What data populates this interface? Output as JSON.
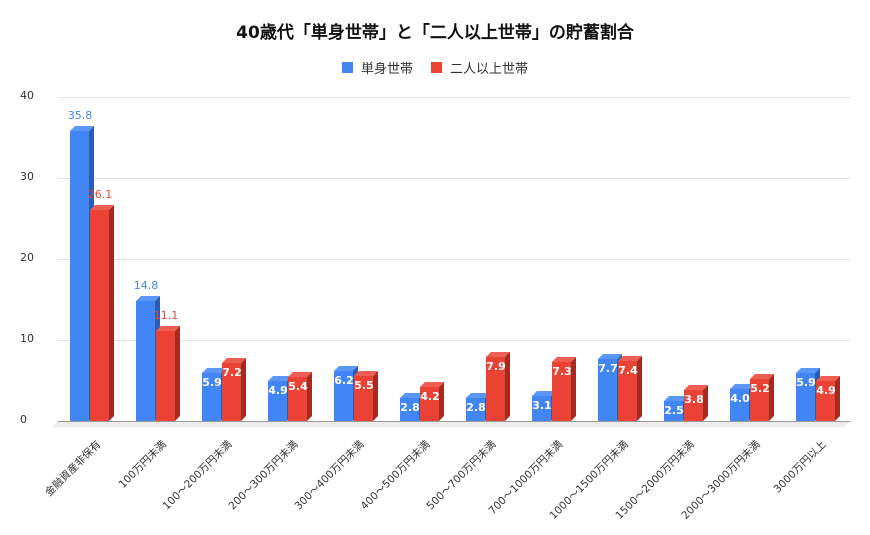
{
  "chart_data": {
    "type": "bar",
    "title": "40歳代「単身世帯」と「二人以上世帯」の貯蓄割合",
    "xlabel": "",
    "ylabel": "",
    "ylim": [
      0,
      40
    ],
    "yticks": [
      0,
      10,
      20,
      30,
      40
    ],
    "grid": true,
    "legend_position": "top",
    "style": "3d-column",
    "categories": [
      "金融資産非保有",
      "100万円未満",
      "100〜200万円未満",
      "200〜300万円未満",
      "300〜400万円未満",
      "400〜500万円未満",
      "500〜700万円未満",
      "700〜1000万円未満",
      "1000〜1500万円未満",
      "1500〜2000万円未満",
      "2000〜3000万円未満",
      "3000万円以上"
    ],
    "series": [
      {
        "name": "単身世帯",
        "color": "#4285f4",
        "values": [
          35.8,
          14.8,
          5.9,
          4.9,
          6.2,
          2.8,
          2.8,
          3.1,
          7.7,
          2.5,
          4.0,
          5.9
        ]
      },
      {
        "name": "二人以上世帯",
        "color": "#ea4335",
        "values": [
          26.1,
          11.1,
          7.2,
          5.4,
          5.5,
          4.2,
          7.9,
          7.3,
          7.4,
          3.8,
          5.2,
          4.9
        ]
      }
    ]
  },
  "legend": {
    "items": [
      {
        "label": "単身世帯",
        "color": "#4285f4"
      },
      {
        "label": "二人以上世帯",
        "color": "#ea4335"
      }
    ]
  }
}
